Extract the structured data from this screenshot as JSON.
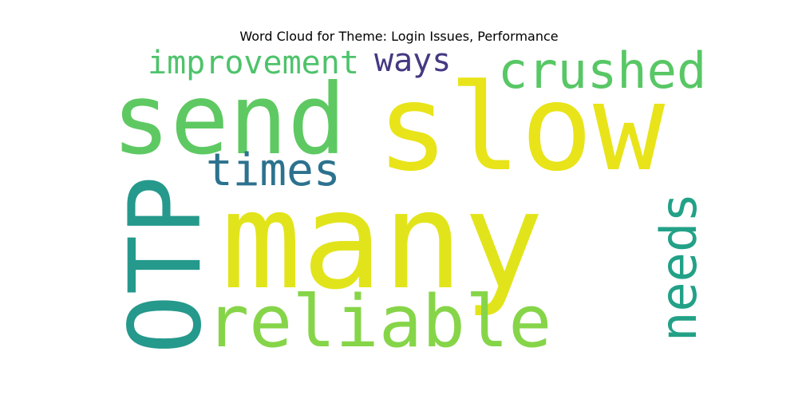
{
  "chart_data": {
    "type": "wordcloud",
    "title": "Word Cloud for Theme: Login Issues, Performance",
    "words": [
      {
        "text": "many",
        "color": "#e2e41b"
      },
      {
        "text": "slow",
        "color": "#e8e419"
      },
      {
        "text": "send",
        "color": "#5ec962"
      },
      {
        "text": "OTP",
        "color": "#25998c"
      },
      {
        "text": "reliable",
        "color": "#86d549"
      },
      {
        "text": "crushed",
        "color": "#58c765"
      },
      {
        "text": "needs",
        "color": "#22a187"
      },
      {
        "text": "times",
        "color": "#2c728e"
      },
      {
        "text": "improvement",
        "color": "#4ec36b"
      },
      {
        "text": "ways",
        "color": "#453882"
      }
    ]
  }
}
